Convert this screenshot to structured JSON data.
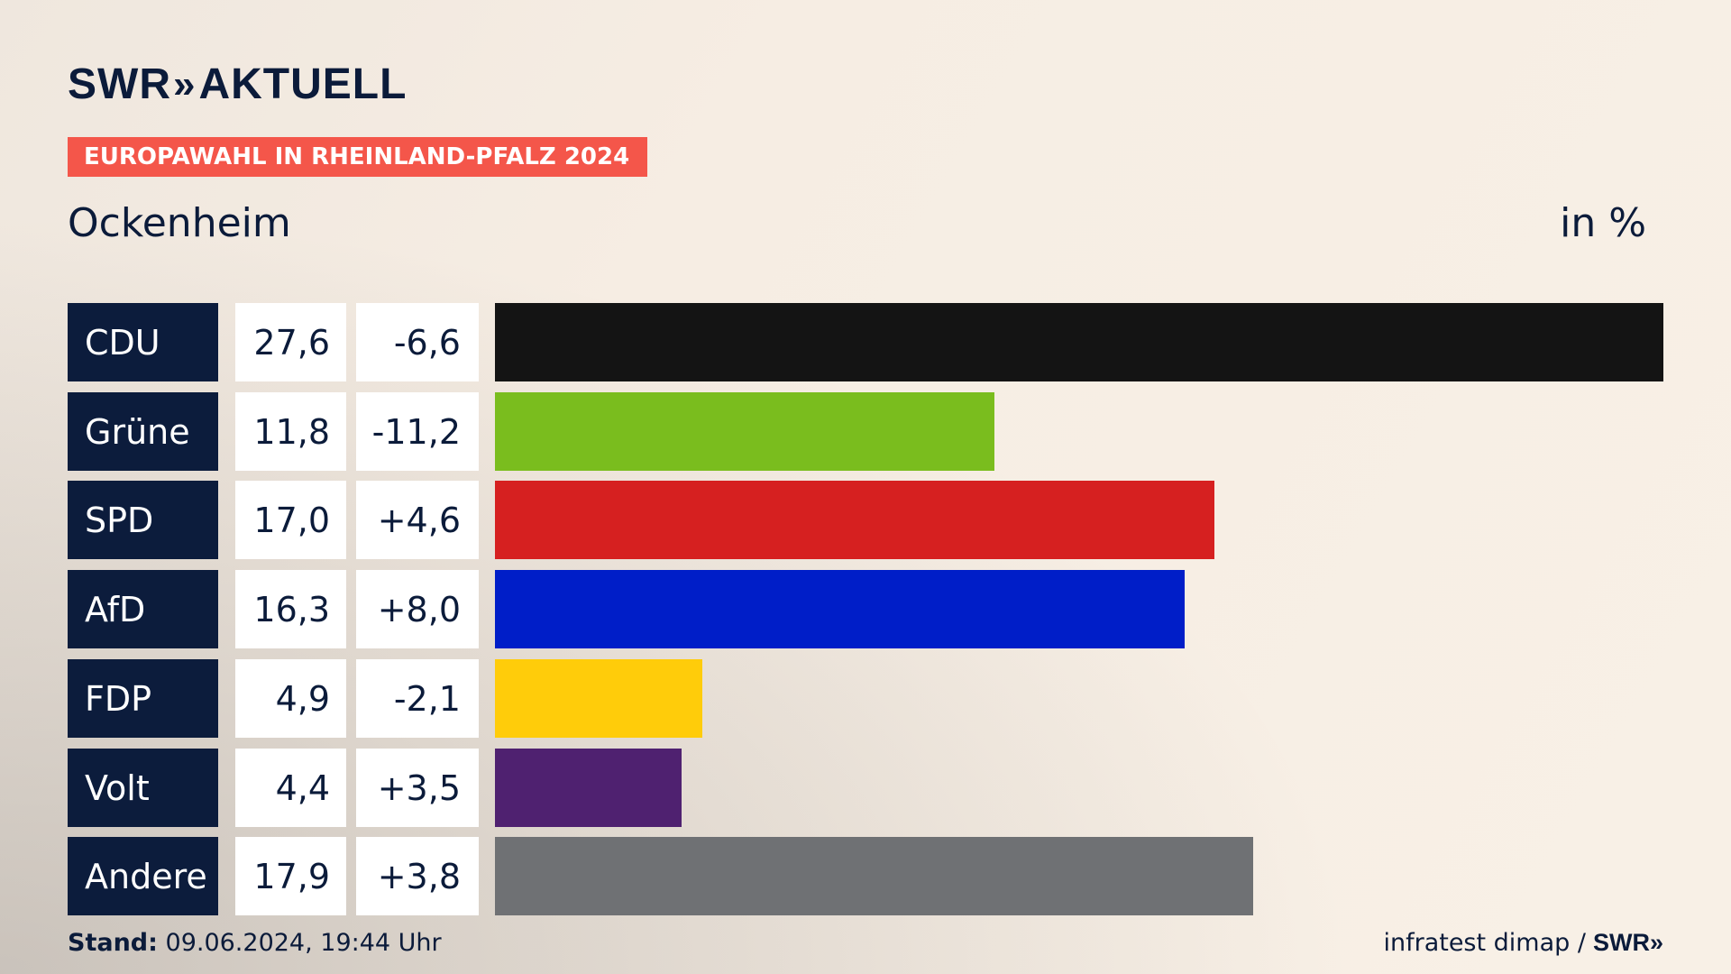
{
  "brand": {
    "logo_left": "SWR",
    "logo_chevrons": "»",
    "logo_right": "AKTUELL"
  },
  "tag": "EUROPAWAHL IN RHEINLAND-PFALZ 2024",
  "region": "Ockenheim",
  "unit": "in %",
  "chart_data": {
    "type": "bar",
    "orientation": "horizontal",
    "categories": [
      "CDU",
      "Grüne",
      "SPD",
      "AfD",
      "FDP",
      "Volt",
      "Andere"
    ],
    "values": [
      27.6,
      11.8,
      17.0,
      16.3,
      4.9,
      4.4,
      17.9
    ],
    "value_labels": [
      "27,6",
      "11,8",
      "17,0",
      "16,3",
      "4,9",
      "4,4",
      "17,9"
    ],
    "changes": [
      -6.6,
      -11.2,
      4.6,
      8.0,
      -2.1,
      3.5,
      3.8
    ],
    "change_labels": [
      "-6,6",
      "-11,2",
      "+4,6",
      "+8,0",
      "-2,1",
      "+3,5",
      "+3,8"
    ],
    "colors": [
      "#141414",
      "#7abd1e",
      "#d62020",
      "#001ec8",
      "#ffcc0a",
      "#4f2170",
      "#6f7174"
    ]
  },
  "footer": {
    "stand_label": "Stand:",
    "stand_value": "09.06.2024, 19:44 Uhr",
    "source": "infratest dimap /",
    "source_brand": "SWR»"
  }
}
